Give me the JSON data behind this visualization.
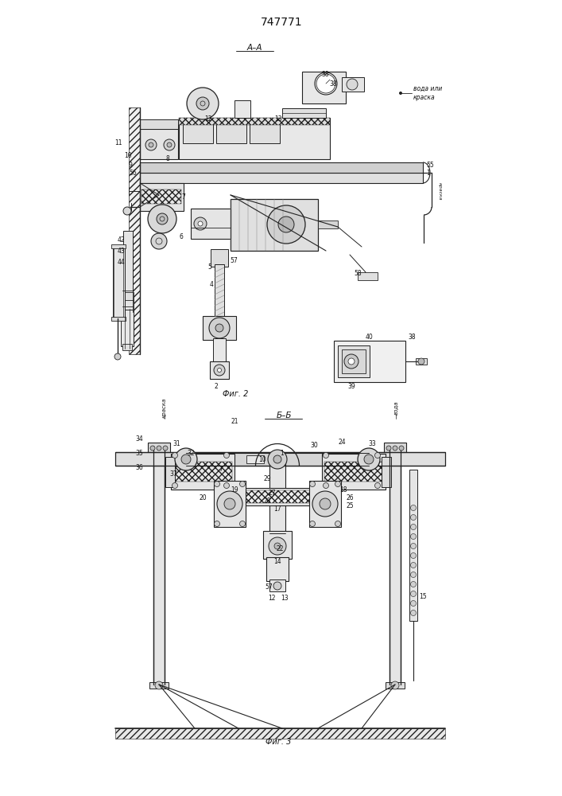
{
  "title": "747771",
  "fig2_label": "А–А",
  "fig3_label": "Б–Б",
  "fig2_caption": "Фиг. 2",
  "fig3_caption": "Фиг. 3",
  "bg_color": "#ffffff",
  "lc": "#222222",
  "ac": "#111111",
  "label_voda_kraска": "вода или\nкраска",
  "label_kraска_rot": "краска",
  "label_kraска3": "краска",
  "label_voda3": "вода"
}
